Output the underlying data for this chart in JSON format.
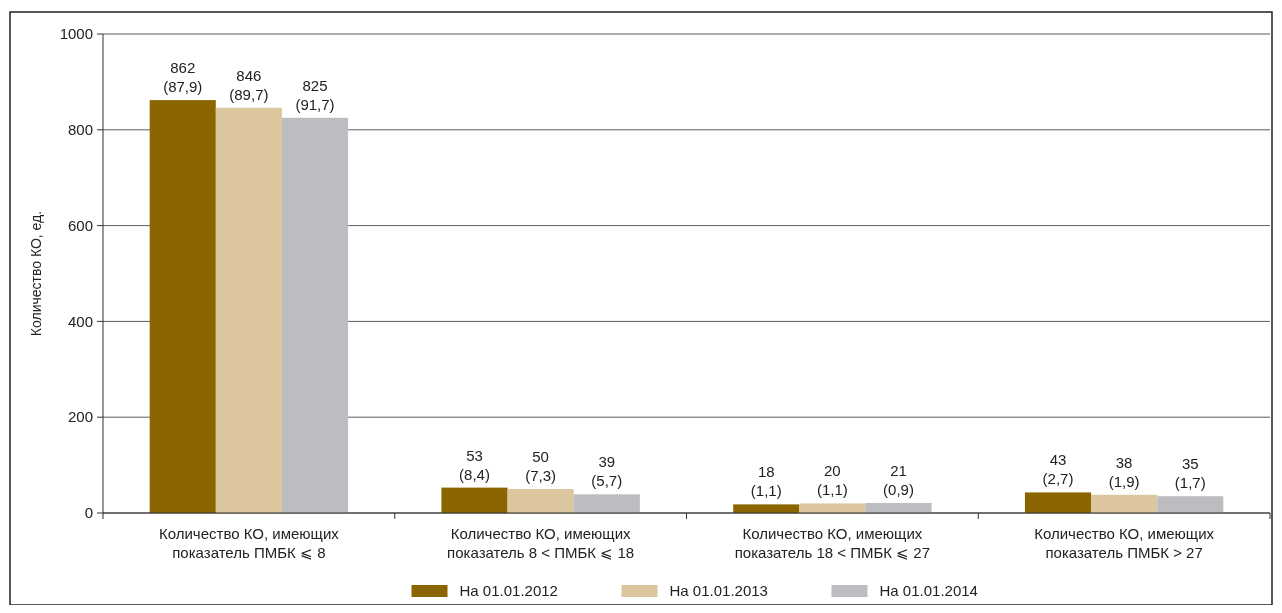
{
  "chart_data": {
    "type": "bar",
    "ylabel": "Количество КО, ед.",
    "categories": [
      "Количество КО, имеющих\nпоказатель ПМБК ⩽ 8",
      "Количество КО, имеющих\nпоказатель 8 < ПМБК ⩽ 18",
      "Количество КО, имеющих\nпоказатель 18 < ПМБК ⩽ 27",
      "Количество КО, имеющих\nпоказатель ПМБК > 27"
    ],
    "series": [
      {
        "name": "На 01.01.2012",
        "color": "#8a6500",
        "values": [
          862,
          53,
          18,
          43
        ],
        "value_labels": [
          "862\n(87,9)",
          "53\n(8,4)",
          "18\n(1,1)",
          "43\n(2,7)"
        ]
      },
      {
        "name": "На 01.01.2013",
        "color": "#dcc69e",
        "values": [
          846,
          50,
          20,
          38
        ],
        "value_labels": [
          "846\n(89,7)",
          "50\n(7,3)",
          "20\n(1,1)",
          "38\n(1,9)"
        ]
      },
      {
        "name": "На 01.01.2014",
        "color": "#bcbdc1",
        "values": [
          825,
          39,
          21,
          35
        ],
        "value_labels": [
          "825\n(91,7)",
          "39\n(5,7)",
          "21\n(0,9)",
          "35\n(1,7)"
        ]
      }
    ],
    "ylim": [
      0,
      1000
    ],
    "yticks": [
      0,
      200,
      400,
      600,
      800,
      1000
    ],
    "grid": "y",
    "legend": "bottom"
  }
}
